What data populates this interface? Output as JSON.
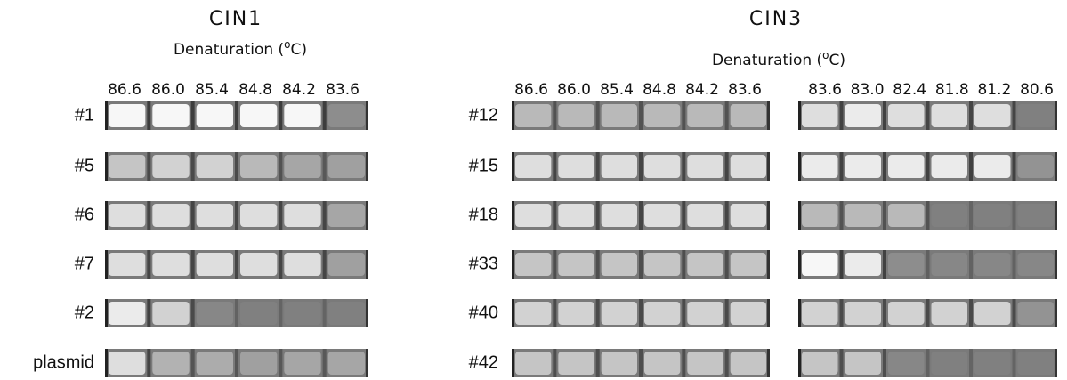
{
  "panels": [
    {
      "title": "CIN1",
      "axis_label": [
        "Denaturation (",
        "o",
        "C)"
      ],
      "groups": [
        {
          "temperatures": [
            "86.6",
            "86.0",
            "85.4",
            "84.8",
            "84.2",
            "83.6"
          ]
        }
      ],
      "rows": [
        "#1",
        "#5",
        "#6",
        "#7",
        "#2",
        "plasmid"
      ]
    },
    {
      "title": "CIN3",
      "axis_label": [
        "Denaturation (",
        "o",
        "C)"
      ],
      "groups": [
        {
          "temperatures": [
            "86.6",
            "86.0",
            "85.4",
            "84.8",
            "84.2",
            "83.6"
          ]
        },
        {
          "temperatures": [
            "83.6",
            "83.0",
            "82.4",
            "81.8",
            "81.2",
            "80.6"
          ]
        }
      ],
      "rows": [
        "#12",
        "#15",
        "#18",
        "#33",
        "#40",
        "#42"
      ]
    }
  ]
}
